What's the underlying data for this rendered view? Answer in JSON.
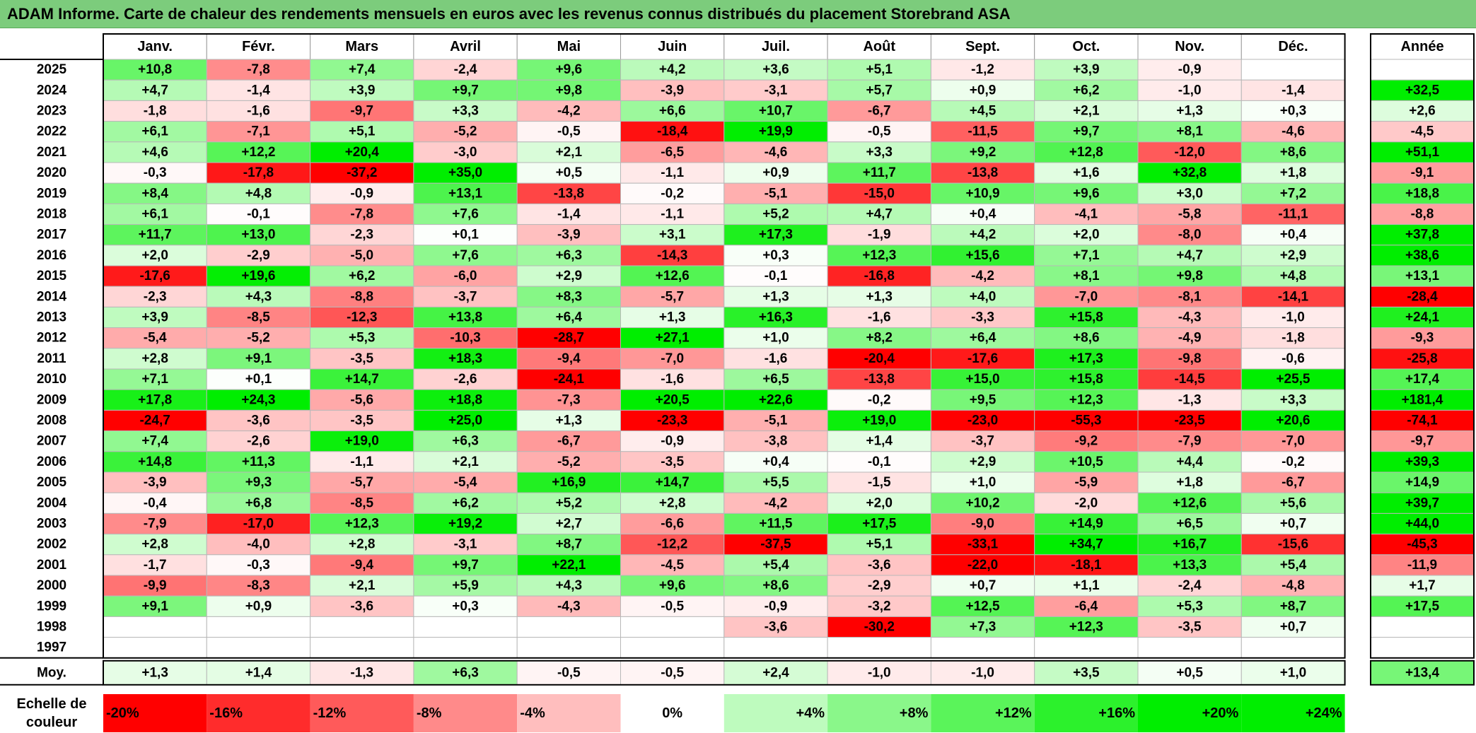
{
  "title": "ADAM Informe. Carte de chaleur des rendements mensuels en euros avec les revenus connus distribués du placement Storebrand ASA",
  "chart_data": {
    "type": "heatmap",
    "columns": [
      "Janv.",
      "Févr.",
      "Mars",
      "Avril",
      "Mai",
      "Juin",
      "Juil.",
      "Août",
      "Sept.",
      "Oct.",
      "Nov.",
      "Déc."
    ],
    "year_column_label": "Année",
    "rows": [
      {
        "year": "2025",
        "months": [
          "+10,8",
          "-7,8",
          "+7,4",
          "-2,4",
          "+9,6",
          "+4,2",
          "+3,6",
          "+5,1",
          "-1,2",
          "+3,9",
          "-0,9",
          ""
        ],
        "annual": ""
      },
      {
        "year": "2024",
        "months": [
          "+4,7",
          "-1,4",
          "+3,9",
          "+9,7",
          "+9,8",
          "-3,9",
          "-3,1",
          "+5,7",
          "+0,9",
          "+6,2",
          "-1,0",
          "-1,4"
        ],
        "annual": "+32,5"
      },
      {
        "year": "2023",
        "months": [
          "-1,8",
          "-1,6",
          "-9,7",
          "+3,3",
          "-4,2",
          "+6,6",
          "+10,7",
          "-6,7",
          "+4,5",
          "+2,1",
          "+1,3",
          "+0,3"
        ],
        "annual": "+2,6"
      },
      {
        "year": "2022",
        "months": [
          "+6,1",
          "-7,1",
          "+5,1",
          "-5,2",
          "-0,5",
          "-18,4",
          "+19,9",
          "-0,5",
          "-11,5",
          "+9,7",
          "+8,1",
          "-4,6"
        ],
        "annual": "-4,5"
      },
      {
        "year": "2021",
        "months": [
          "+4,6",
          "+12,2",
          "+20,4",
          "-3,0",
          "+2,1",
          "-6,5",
          "-4,6",
          "+3,3",
          "+9,2",
          "+12,8",
          "-12,0",
          "+8,6"
        ],
        "annual": "+51,1"
      },
      {
        "year": "2020",
        "months": [
          "-0,3",
          "-17,8",
          "-37,2",
          "+35,0",
          "+0,5",
          "-1,1",
          "+0,9",
          "+11,7",
          "-13,8",
          "+1,6",
          "+32,8",
          "+1,8"
        ],
        "annual": "-9,1"
      },
      {
        "year": "2019",
        "months": [
          "+8,4",
          "+4,8",
          "-0,9",
          "+13,1",
          "-13,8",
          "-0,2",
          "-5,1",
          "-15,0",
          "+10,9",
          "+9,6",
          "+3,0",
          "+7,2"
        ],
        "annual": "+18,8"
      },
      {
        "year": "2018",
        "months": [
          "+6,1",
          "-0,1",
          "-7,8",
          "+7,6",
          "-1,4",
          "-1,1",
          "+5,2",
          "+4,7",
          "+0,4",
          "-4,1",
          "-5,8",
          "-11,1"
        ],
        "annual": "-8,8"
      },
      {
        "year": "2017",
        "months": [
          "+11,7",
          "+13,0",
          "-2,3",
          "+0,1",
          "-3,9",
          "+3,1",
          "+17,3",
          "-1,9",
          "+4,2",
          "+2,0",
          "-8,0",
          "+0,4"
        ],
        "annual": "+37,8"
      },
      {
        "year": "2016",
        "months": [
          "+2,0",
          "-2,9",
          "-5,0",
          "+7,6",
          "+6,3",
          "-14,3",
          "+0,3",
          "+12,3",
          "+15,6",
          "+7,1",
          "+4,7",
          "+2,9"
        ],
        "annual": "+38,6"
      },
      {
        "year": "2015",
        "months": [
          "-17,6",
          "+19,6",
          "+6,2",
          "-6,0",
          "+2,9",
          "+12,6",
          "-0,1",
          "-16,8",
          "-4,2",
          "+8,1",
          "+9,8",
          "+4,8"
        ],
        "annual": "+13,1"
      },
      {
        "year": "2014",
        "months": [
          "-2,3",
          "+4,3",
          "-8,8",
          "-3,7",
          "+8,3",
          "-5,7",
          "+1,3",
          "+1,3",
          "+4,0",
          "-7,0",
          "-8,1",
          "-14,1"
        ],
        "annual": "-28,4"
      },
      {
        "year": "2013",
        "months": [
          "+3,9",
          "-8,5",
          "-12,3",
          "+13,8",
          "+6,4",
          "+1,3",
          "+16,3",
          "-1,6",
          "-3,3",
          "+15,8",
          "-4,3",
          "-1,0"
        ],
        "annual": "+24,1"
      },
      {
        "year": "2012",
        "months": [
          "-5,4",
          "-5,2",
          "+5,3",
          "-10,3",
          "-28,7",
          "+27,1",
          "+1,0",
          "+8,2",
          "+6,4",
          "+8,6",
          "-4,9",
          "-1,8"
        ],
        "annual": "-9,3"
      },
      {
        "year": "2011",
        "months": [
          "+2,8",
          "+9,1",
          "-3,5",
          "+18,3",
          "-9,4",
          "-7,0",
          "-1,6",
          "-20,4",
          "-17,6",
          "+17,3",
          "-9,8",
          "-0,6"
        ],
        "annual": "-25,8"
      },
      {
        "year": "2010",
        "months": [
          "+7,1",
          "+0,1",
          "+14,7",
          "-2,6",
          "-24,1",
          "-1,6",
          "+6,5",
          "-13,8",
          "+15,0",
          "+15,8",
          "-14,5",
          "+25,5"
        ],
        "annual": "+17,4"
      },
      {
        "year": "2009",
        "months": [
          "+17,8",
          "+24,3",
          "-5,6",
          "+18,8",
          "-7,3",
          "+20,5",
          "+22,6",
          "-0,2",
          "+9,5",
          "+12,3",
          "-1,3",
          "+3,3"
        ],
        "annual": "+181,4"
      },
      {
        "year": "2008",
        "months": [
          "-24,7",
          "-3,6",
          "-3,5",
          "+25,0",
          "+1,3",
          "-23,3",
          "-5,1",
          "+19,0",
          "-23,0",
          "-55,3",
          "-23,5",
          "+20,6"
        ],
        "annual": "-74,1"
      },
      {
        "year": "2007",
        "months": [
          "+7,4",
          "-2,6",
          "+19,0",
          "+6,3",
          "-6,7",
          "-0,9",
          "-3,8",
          "+1,4",
          "-3,7",
          "-9,2",
          "-7,9",
          "-7,0"
        ],
        "annual": "-9,7"
      },
      {
        "year": "2006",
        "months": [
          "+14,8",
          "+11,3",
          "-1,1",
          "+2,1",
          "-5,2",
          "-3,5",
          "+0,4",
          "-0,1",
          "+2,9",
          "+10,5",
          "+4,4",
          "-0,2"
        ],
        "annual": "+39,3"
      },
      {
        "year": "2005",
        "months": [
          "-3,9",
          "+9,3",
          "-5,7",
          "-5,4",
          "+16,9",
          "+14,7",
          "+5,5",
          "-1,5",
          "+1,0",
          "-5,9",
          "+1,8",
          "-6,7"
        ],
        "annual": "+14,9"
      },
      {
        "year": "2004",
        "months": [
          "-0,4",
          "+6,8",
          "-8,5",
          "+6,2",
          "+5,2",
          "+2,8",
          "-4,2",
          "+2,0",
          "+10,2",
          "-2,0",
          "+12,6",
          "+5,6"
        ],
        "annual": "+39,7"
      },
      {
        "year": "2003",
        "months": [
          "-7,9",
          "-17,0",
          "+12,3",
          "+19,2",
          "+2,7",
          "-6,6",
          "+11,5",
          "+17,5",
          "-9,0",
          "+14,9",
          "+6,5",
          "+0,7"
        ],
        "annual": "+44,0"
      },
      {
        "year": "2002",
        "months": [
          "+2,8",
          "-4,0",
          "+2,8",
          "-3,1",
          "+8,7",
          "-12,2",
          "-37,5",
          "+5,1",
          "-33,1",
          "+34,7",
          "+16,7",
          "-15,6"
        ],
        "annual": "-45,3"
      },
      {
        "year": "2001",
        "months": [
          "-1,7",
          "-0,3",
          "-9,4",
          "+9,7",
          "+22,1",
          "-4,5",
          "+5,4",
          "-3,6",
          "-22,0",
          "-18,1",
          "+13,3",
          "+5,4"
        ],
        "annual": "-11,9"
      },
      {
        "year": "2000",
        "months": [
          "-9,9",
          "-8,3",
          "+2,1",
          "+5,9",
          "+4,3",
          "+9,6",
          "+8,6",
          "-2,9",
          "+0,7",
          "+1,1",
          "-2,4",
          "-4,8"
        ],
        "annual": "+1,7"
      },
      {
        "year": "1999",
        "months": [
          "+9,1",
          "+0,9",
          "-3,6",
          "+0,3",
          "-4,3",
          "-0,5",
          "-0,9",
          "-3,2",
          "+12,5",
          "-6,4",
          "+5,3",
          "+8,7"
        ],
        "annual": "+17,5"
      },
      {
        "year": "1998",
        "months": [
          "",
          "",
          "",
          "",
          "",
          "",
          "-3,6",
          "-30,2",
          "+7,3",
          "+12,3",
          "-3,5",
          "+0,7"
        ],
        "annual": ""
      },
      {
        "year": "1997",
        "months": [
          "",
          "",
          "",
          "",
          "",
          "",
          "",
          "",
          "",
          "",
          "",
          ""
        ],
        "annual": ""
      }
    ],
    "average": {
      "label": "Moy.",
      "months": [
        "+1,3",
        "+1,4",
        "-1,3",
        "+6,3",
        "-0,5",
        "-0,5",
        "+2,4",
        "-1,0",
        "-1,0",
        "+3,5",
        "+0,5",
        "+1,0"
      ],
      "annual": "+13,4"
    },
    "scale": {
      "label_line1": "Echelle de",
      "label_line2": "couleur",
      "steps": [
        "-20%",
        "-16%",
        "-12%",
        "-8%",
        "-4%",
        "0%",
        "+4%",
        "+8%",
        "+12%",
        "+16%",
        "+20%",
        "+24%"
      ]
    },
    "colors": {
      "negative_max": "#ff0000",
      "positive_max": "#00ee00",
      "neutral": "#ffffff",
      "title_bar": "#7ccc7c"
    }
  }
}
